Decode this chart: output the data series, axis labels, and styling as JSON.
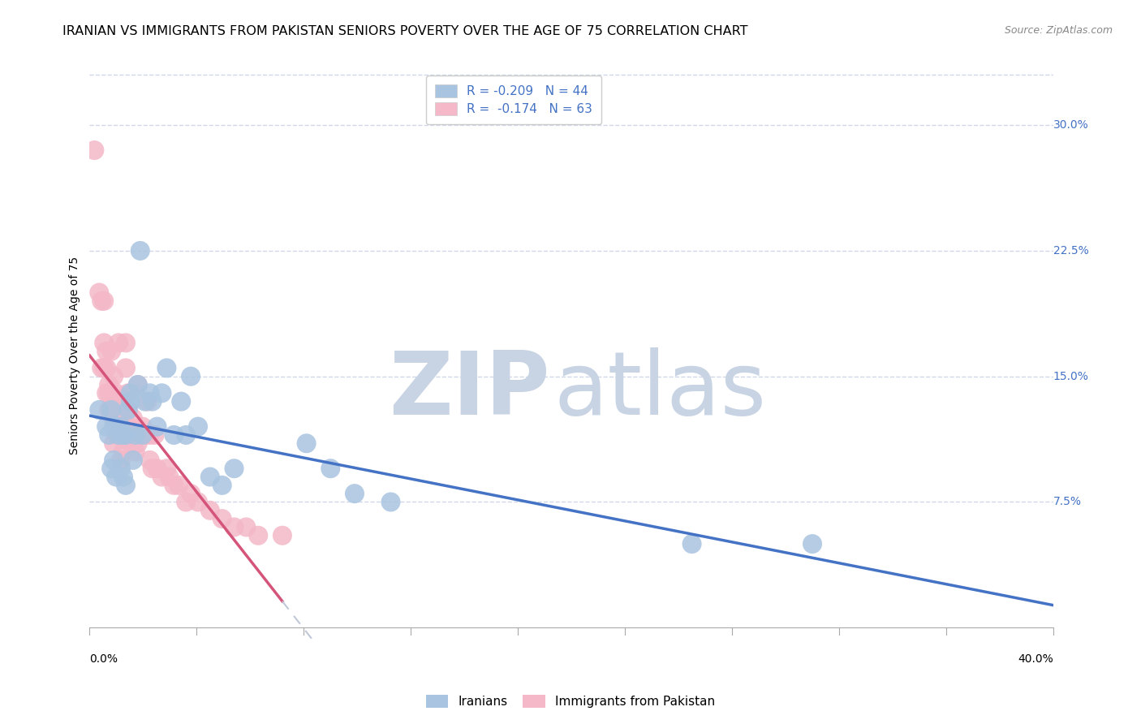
{
  "title": "IRANIAN VS IMMIGRANTS FROM PAKISTAN SENIORS POVERTY OVER THE AGE OF 75 CORRELATION CHART",
  "source": "Source: ZipAtlas.com",
  "ylabel": "Seniors Poverty Over the Age of 75",
  "xlim": [
    0.0,
    0.4
  ],
  "ylim": [
    -0.01,
    0.335
  ],
  "plot_ylim": [
    0.0,
    0.335
  ],
  "yticks": [
    0.075,
    0.15,
    0.225,
    0.3
  ],
  "ytick_labels": [
    "7.5%",
    "15.0%",
    "22.5%",
    "30.0%"
  ],
  "iranians_R": -0.209,
  "iranians_N": 44,
  "pakistan_R": -0.174,
  "pakistan_N": 63,
  "iranians_color": "#a8c4e0",
  "pakistan_color": "#f4b8c8",
  "iranians_line_color": "#4472c4",
  "pakistan_line_color": "#d4547a",
  "pakistan_dash_color": "#c0c8d8",
  "watermark_zip_color": "#c8d4e4",
  "watermark_atlas_color": "#c8d4e4",
  "iranians_x": [
    0.004,
    0.007,
    0.008,
    0.009,
    0.009,
    0.01,
    0.01,
    0.011,
    0.011,
    0.012,
    0.013,
    0.013,
    0.014,
    0.014,
    0.015,
    0.015,
    0.016,
    0.017,
    0.017,
    0.018,
    0.019,
    0.02,
    0.021,
    0.022,
    0.023,
    0.025,
    0.026,
    0.028,
    0.03,
    0.032,
    0.035,
    0.038,
    0.04,
    0.042,
    0.045,
    0.05,
    0.055,
    0.06,
    0.09,
    0.1,
    0.11,
    0.125,
    0.25,
    0.3
  ],
  "iranians_y": [
    0.13,
    0.12,
    0.115,
    0.13,
    0.095,
    0.12,
    0.1,
    0.12,
    0.09,
    0.115,
    0.12,
    0.095,
    0.115,
    0.09,
    0.115,
    0.085,
    0.13,
    0.14,
    0.135,
    0.1,
    0.115,
    0.145,
    0.225,
    0.115,
    0.135,
    0.14,
    0.135,
    0.12,
    0.14,
    0.155,
    0.115,
    0.135,
    0.115,
    0.15,
    0.12,
    0.09,
    0.085,
    0.095,
    0.11,
    0.095,
    0.08,
    0.075,
    0.05,
    0.05
  ],
  "pakistan_x": [
    0.002,
    0.004,
    0.005,
    0.005,
    0.006,
    0.006,
    0.006,
    0.007,
    0.007,
    0.007,
    0.008,
    0.008,
    0.008,
    0.009,
    0.009,
    0.01,
    0.01,
    0.01,
    0.01,
    0.011,
    0.011,
    0.011,
    0.012,
    0.012,
    0.013,
    0.013,
    0.014,
    0.014,
    0.015,
    0.015,
    0.015,
    0.016,
    0.016,
    0.017,
    0.017,
    0.018,
    0.018,
    0.019,
    0.02,
    0.02,
    0.021,
    0.022,
    0.023,
    0.024,
    0.025,
    0.025,
    0.026,
    0.027,
    0.028,
    0.03,
    0.032,
    0.033,
    0.035,
    0.037,
    0.04,
    0.042,
    0.045,
    0.05,
    0.055,
    0.06,
    0.065,
    0.07,
    0.08
  ],
  "pakistan_y": [
    0.285,
    0.2,
    0.195,
    0.155,
    0.195,
    0.17,
    0.155,
    0.165,
    0.155,
    0.14,
    0.145,
    0.14,
    0.13,
    0.165,
    0.13,
    0.15,
    0.135,
    0.125,
    0.11,
    0.14,
    0.13,
    0.115,
    0.17,
    0.125,
    0.12,
    0.1,
    0.115,
    0.105,
    0.17,
    0.155,
    0.13,
    0.14,
    0.13,
    0.12,
    0.11,
    0.125,
    0.11,
    0.105,
    0.145,
    0.11,
    0.115,
    0.12,
    0.115,
    0.135,
    0.115,
    0.1,
    0.095,
    0.115,
    0.095,
    0.09,
    0.095,
    0.09,
    0.085,
    0.085,
    0.075,
    0.08,
    0.075,
    0.07,
    0.065,
    0.06,
    0.06,
    0.055,
    0.055
  ],
  "background_color": "#ffffff",
  "grid_color": "#d0d8e8",
  "title_fontsize": 11.5,
  "axis_label_fontsize": 10,
  "tick_fontsize": 10,
  "legend_fontsize": 11
}
